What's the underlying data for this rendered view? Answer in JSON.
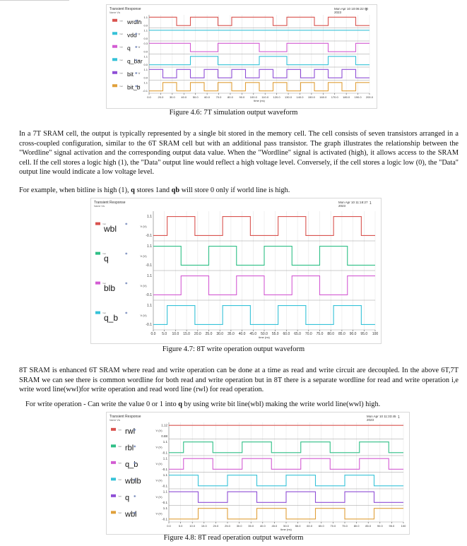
{
  "colors": {
    "red": "#d9534f",
    "green": "#2fbf86",
    "magenta": "#d35cd3",
    "cyan": "#36c2d8",
    "purple": "#8f4fd6",
    "orange": "#e0a03a",
    "grid": "#e6e6e6",
    "frame": "#9a9a9a"
  },
  "figures": [
    {
      "id": "fig46",
      "header": "Transient Response",
      "subheader": "Name        Vis",
      "date": "Mon Apr 10 10:06:22 00\n2023",
      "page_mark": "1",
      "xticks": [
        "0.0",
        "20.0",
        "30.0",
        "40.0",
        "50.0",
        "60.0",
        "70.0",
        "80.0",
        "90.0",
        "100.0",
        "110.0",
        "120.0",
        "130.0",
        "140.0",
        "150.0",
        "160.0",
        "170.0",
        "180.0",
        "190.0",
        "200.0"
      ],
      "xlabel": "time (ns)",
      "caption": "Figure 4.6: 7T simulation output waveform",
      "signals": [
        {
          "label": "wrdln",
          "color": "#d9534f",
          "ylabel": "V",
          "ticks": [
            "1.1",
            "0.0"
          ],
          "wave": "1101101110110110"
        },
        {
          "label": "vdd",
          "color": "#36c2d8",
          "ylabel": "V",
          "ticks": [
            "1.1",
            "0.0"
          ],
          "wave": "flat"
        },
        {
          "label": "q",
          "color": "#d35cd3",
          "ylabel": "V",
          "ticks": [
            "0.3",
            "0.0"
          ],
          "wave": "1110011100111001"
        },
        {
          "label": "q_bar",
          "color": "#36c2d8",
          "ylabel": "V",
          "ticks": [
            "1.1",
            "0.0"
          ],
          "wave": "0001100011000110"
        },
        {
          "label": "bit",
          "color": "#8f4fd6",
          "ylabel": "V",
          "ticks": [
            "1.1",
            "0.0"
          ],
          "wave": "1010101010101010"
        },
        {
          "label": "bit_b",
          "color": "#e0a03a",
          "ylabel": "V",
          "ticks": [
            "1.1",
            "-0.1"
          ],
          "wave": "0101010101010101"
        }
      ]
    },
    {
      "id": "fig47",
      "header": "Transient Response",
      "subheader": "Name        Vis",
      "date": "Mon Apr 10 11:18:27\n2023",
      "page_mark": "1",
      "xticks": [
        "0.0",
        "5.0",
        "10.0",
        "15.0",
        "20.0",
        "25.0",
        "30.0",
        "35.0",
        "40.0",
        "45.0",
        "50.0",
        "55.0",
        "60.0",
        "65.0",
        "70.0",
        "75.0",
        "80.0",
        "85.0",
        "90.0",
        "95.0",
        "100"
      ],
      "xlabel": "time (ns)",
      "caption": "Figure 4.7: 8T write operation output waveform",
      "signals": [
        {
          "label": "wbl",
          "color": "#d9534f",
          "ylabel": "V (V)",
          "ticks": [
            "1.1",
            "-0.1"
          ],
          "wave": "0110011001100110"
        },
        {
          "label": "q",
          "color": "#2fbf86",
          "ylabel": "V (V)",
          "ticks": [
            "1.1",
            "-0.1"
          ],
          "wave": "1100110011001100"
        },
        {
          "label": "blb",
          "color": "#d35cd3",
          "ylabel": "V (V)",
          "ticks": [
            "1.1",
            "-0.1"
          ],
          "wave": "0011001100110011"
        },
        {
          "label": "q_b",
          "color": "#36c2d8",
          "ylabel": "V (V)",
          "ticks": [
            "1.1",
            "-0.1"
          ],
          "wave": "0110011001100110"
        }
      ]
    },
    {
      "id": "fig48",
      "header": "Transient Response",
      "subheader": "Name        Vis",
      "date": "Mon Apr 10 11:33:45\n2023",
      "page_mark": "1",
      "xticks": [
        "0.0",
        "5.0",
        "10.0",
        "15.0",
        "20.0",
        "25.0",
        "30.0",
        "35.0",
        "40.0",
        "45.0",
        "50.0",
        "55.0",
        "60.0",
        "65.0",
        "70.0",
        "75.0",
        "80.0",
        "85.0",
        "90.0",
        "95.0",
        "100"
      ],
      "xlabel": "time (ns)",
      "caption": "Figure 4.8: 8T read operation output waveform",
      "signals": [
        {
          "label": "rwl",
          "color": "#d9534f",
          "ylabel": "V (V)",
          "ticks": [
            "1.12",
            "0.88"
          ],
          "wave": "flat"
        },
        {
          "label": "rbl",
          "color": "#2fbf86",
          "ylabel": "V (V)",
          "ticks": [
            "1.1",
            "-0.1"
          ],
          "wave": "0110011001100110"
        },
        {
          "label": "q_b",
          "color": "#d35cd3",
          "ylabel": "V (V)",
          "ticks": [
            "1.1",
            "-0.1"
          ],
          "wave": "0110011001100110"
        },
        {
          "label": "wblb",
          "color": "#36c2d8",
          "ylabel": "V (V)",
          "ticks": [
            "1.1",
            "-0.1"
          ],
          "wave": "1100110011001100"
        },
        {
          "label": "q",
          "color": "#8f4fd6",
          "ylabel": "V (V)",
          "ticks": [
            "1.1",
            "-0.1"
          ],
          "wave": "1100110011001100"
        },
        {
          "label": "wbl",
          "color": "#e0a03a",
          "ylabel": "V (V)",
          "ticks": [
            "1.1",
            "-0.1"
          ],
          "wave": "0011001100110011"
        }
      ]
    }
  ],
  "paragraphs": {
    "p1": "In a 7T SRAM cell, the output is typically represented by a single bit stored in the memory cell. The cell consists of seven transistors arranged in a cross-coupled configuration, similar to the 6T SRAM cell but with an additional pass transistor. The graph illustrates the relationship between the \"Wordline\" signal activation and the corresponding output data value. When the \"Wordline\" signal is activated (high), it allows access to the SRAM cell. If the cell stores a logic high (1), the \"Data\" output line would reflect a high voltage level. Conversely, if the cell stores a logic low (0), the \"Data\" output line would indicate a low voltage level.",
    "p2_pre": "For example, when bitline is high (1), ",
    "p2_q": "q",
    "p2_mid": " stores 1and ",
    "p2_qb": "qb",
    "p2_post": " will store 0 only if world line is high.",
    "p3": "8T SRAM  is enhanced 6T SRAM where read and write operation can be done at a time as read and write circuit are decoupled. In the above 6T,7T SRAM we can see  there is common wordline for both read and write operation but in 8T there is a separate wordline for read and write operation i,e write word line(wwl)for write operation and read word line (rwl) for read operation.",
    "p4_pre": "For write operation - Can write the value 0 or 1 into ",
    "p4_q": "q",
    "p4_post": " by using write bit line(wbl)  making the  write world line(wwl) high."
  }
}
